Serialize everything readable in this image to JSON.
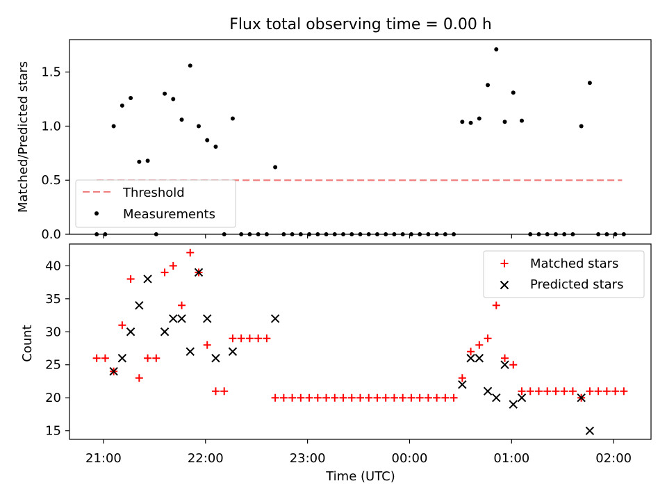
{
  "chart_data": [
    {
      "type": "scatter",
      "title": "Flux total observing time = 0.00 h",
      "xlabel": "",
      "ylabel": "Matched/Predicted stars",
      "xlim": [
        "20:40",
        "02:22"
      ],
      "ylim": [
        0,
        1.8
      ],
      "yticks": [
        0.0,
        0.5,
        1.0,
        1.5
      ],
      "ytick_labels": [
        "0.0",
        "0.5",
        "1.0",
        "1.5"
      ],
      "xticks": [
        "21:00",
        "22:00",
        "23:00",
        "00:00",
        "01:00",
        "02:00"
      ],
      "legend_position": "lower-left",
      "colors": {
        "threshold": "#f08080",
        "measurements": "#000000"
      },
      "threshold": {
        "name": "Threshold",
        "value": 0.5,
        "x_start": "20:56",
        "x_end": "02:05"
      },
      "series": [
        {
          "name": "Measurements",
          "marker": "point",
          "points": [
            [
              "20:56",
              0.0
            ],
            [
              "21:01",
              0.0
            ],
            [
              "21:06",
              1.0
            ],
            [
              "21:11",
              1.19
            ],
            [
              "21:16",
              1.26
            ],
            [
              "21:21",
              0.67
            ],
            [
              "21:26",
              0.68
            ],
            [
              "21:31",
              0.0
            ],
            [
              "21:36",
              1.3
            ],
            [
              "21:41",
              1.25
            ],
            [
              "21:46",
              1.06
            ],
            [
              "21:51",
              1.56
            ],
            [
              "21:56",
              1.0
            ],
            [
              "22:01",
              0.87
            ],
            [
              "22:06",
              0.81
            ],
            [
              "22:11",
              0.0
            ],
            [
              "22:16",
              1.07
            ],
            [
              "22:21",
              0.0
            ],
            [
              "22:26",
              0.0
            ],
            [
              "22:31",
              0.0
            ],
            [
              "22:36",
              0.0
            ],
            [
              "22:41",
              0.62
            ],
            [
              "22:46",
              0.0
            ],
            [
              "22:51",
              0.0
            ],
            [
              "22:56",
              0.0
            ],
            [
              "23:01",
              0.0
            ],
            [
              "23:06",
              0.0
            ],
            [
              "23:11",
              0.0
            ],
            [
              "23:16",
              0.0
            ],
            [
              "23:21",
              0.0
            ],
            [
              "23:26",
              0.0
            ],
            [
              "23:31",
              0.0
            ],
            [
              "23:36",
              0.0
            ],
            [
              "23:41",
              0.0
            ],
            [
              "23:46",
              0.0
            ],
            [
              "23:51",
              0.0
            ],
            [
              "23:56",
              0.0
            ],
            [
              "00:01",
              0.0
            ],
            [
              "00:06",
              0.0
            ],
            [
              "00:11",
              0.0
            ],
            [
              "00:16",
              0.0
            ],
            [
              "00:21",
              0.0
            ],
            [
              "00:26",
              0.0
            ],
            [
              "00:31",
              1.04
            ],
            [
              "00:36",
              1.03
            ],
            [
              "00:41",
              1.07
            ],
            [
              "00:46",
              1.38
            ],
            [
              "00:51",
              1.71
            ],
            [
              "00:56",
              1.04
            ],
            [
              "01:01",
              1.31
            ],
            [
              "01:06",
              1.05
            ],
            [
              "01:11",
              0.0
            ],
            [
              "01:16",
              0.0
            ],
            [
              "01:21",
              0.0
            ],
            [
              "01:26",
              0.0
            ],
            [
              "01:31",
              0.0
            ],
            [
              "01:36",
              0.0
            ],
            [
              "01:41",
              1.0
            ],
            [
              "01:46",
              1.4
            ],
            [
              "01:51",
              0.0
            ],
            [
              "01:56",
              0.0
            ],
            [
              "02:01",
              0.0
            ],
            [
              "02:06",
              0.0
            ]
          ]
        }
      ]
    },
    {
      "type": "scatter",
      "title": "",
      "xlabel": "Time (UTC)",
      "ylabel": "Count",
      "xlim": [
        "20:40",
        "02:22"
      ],
      "ylim": [
        13.7,
        43.3
      ],
      "yticks": [
        15,
        20,
        25,
        30,
        35,
        40
      ],
      "ytick_labels": [
        "15",
        "20",
        "25",
        "30",
        "35",
        "40"
      ],
      "xticks": [
        "21:00",
        "22:00",
        "23:00",
        "00:00",
        "01:00",
        "02:00"
      ],
      "legend_position": "top-right",
      "colors": {
        "matched": "#ff0000",
        "predicted": "#000000"
      },
      "series": [
        {
          "name": "Matched stars",
          "marker": "plus",
          "points": [
            [
              "20:56",
              26
            ],
            [
              "21:01",
              26
            ],
            [
              "21:06",
              24
            ],
            [
              "21:11",
              31
            ],
            [
              "21:16",
              38
            ],
            [
              "21:21",
              23
            ],
            [
              "21:26",
              26
            ],
            [
              "21:31",
              26
            ],
            [
              "21:36",
              39
            ],
            [
              "21:41",
              40
            ],
            [
              "21:46",
              34
            ],
            [
              "21:51",
              42
            ],
            [
              "21:56",
              39
            ],
            [
              "22:01",
              28
            ],
            [
              "22:06",
              21
            ],
            [
              "22:11",
              21
            ],
            [
              "22:16",
              29
            ],
            [
              "22:21",
              29
            ],
            [
              "22:26",
              29
            ],
            [
              "22:31",
              29
            ],
            [
              "22:36",
              29
            ],
            [
              "22:41",
              20
            ],
            [
              "22:46",
              20
            ],
            [
              "22:51",
              20
            ],
            [
              "22:56",
              20
            ],
            [
              "23:01",
              20
            ],
            [
              "23:06",
              20
            ],
            [
              "23:11",
              20
            ],
            [
              "23:16",
              20
            ],
            [
              "23:21",
              20
            ],
            [
              "23:26",
              20
            ],
            [
              "23:31",
              20
            ],
            [
              "23:36",
              20
            ],
            [
              "23:41",
              20
            ],
            [
              "23:46",
              20
            ],
            [
              "23:51",
              20
            ],
            [
              "23:56",
              20
            ],
            [
              "00:01",
              20
            ],
            [
              "00:06",
              20
            ],
            [
              "00:11",
              20
            ],
            [
              "00:16",
              20
            ],
            [
              "00:21",
              20
            ],
            [
              "00:26",
              20
            ],
            [
              "00:31",
              23
            ],
            [
              "00:36",
              27
            ],
            [
              "00:41",
              28
            ],
            [
              "00:46",
              29
            ],
            [
              "00:51",
              34
            ],
            [
              "00:56",
              26
            ],
            [
              "01:01",
              25
            ],
            [
              "01:06",
              21
            ],
            [
              "01:11",
              21
            ],
            [
              "01:16",
              21
            ],
            [
              "01:21",
              21
            ],
            [
              "01:26",
              21
            ],
            [
              "01:31",
              21
            ],
            [
              "01:36",
              21
            ],
            [
              "01:41",
              20
            ],
            [
              "01:46",
              21
            ],
            [
              "01:51",
              21
            ],
            [
              "01:56",
              21
            ],
            [
              "02:01",
              21
            ],
            [
              "02:06",
              21
            ]
          ]
        },
        {
          "name": "Predicted stars",
          "marker": "x",
          "points": [
            [
              "21:06",
              24
            ],
            [
              "21:11",
              26
            ],
            [
              "21:16",
              30
            ],
            [
              "21:21",
              34
            ],
            [
              "21:26",
              38
            ],
            [
              "21:36",
              30
            ],
            [
              "21:41",
              32
            ],
            [
              "21:46",
              32
            ],
            [
              "21:51",
              27
            ],
            [
              "21:56",
              39
            ],
            [
              "22:01",
              32
            ],
            [
              "22:06",
              26
            ],
            [
              "22:16",
              27
            ],
            [
              "22:41",
              32
            ],
            [
              "00:31",
              22
            ],
            [
              "00:36",
              26
            ],
            [
              "00:41",
              26
            ],
            [
              "00:46",
              21
            ],
            [
              "00:51",
              20
            ],
            [
              "00:56",
              25
            ],
            [
              "01:01",
              19
            ],
            [
              "01:06",
              20
            ],
            [
              "01:41",
              20
            ],
            [
              "01:46",
              15
            ]
          ]
        }
      ]
    }
  ]
}
